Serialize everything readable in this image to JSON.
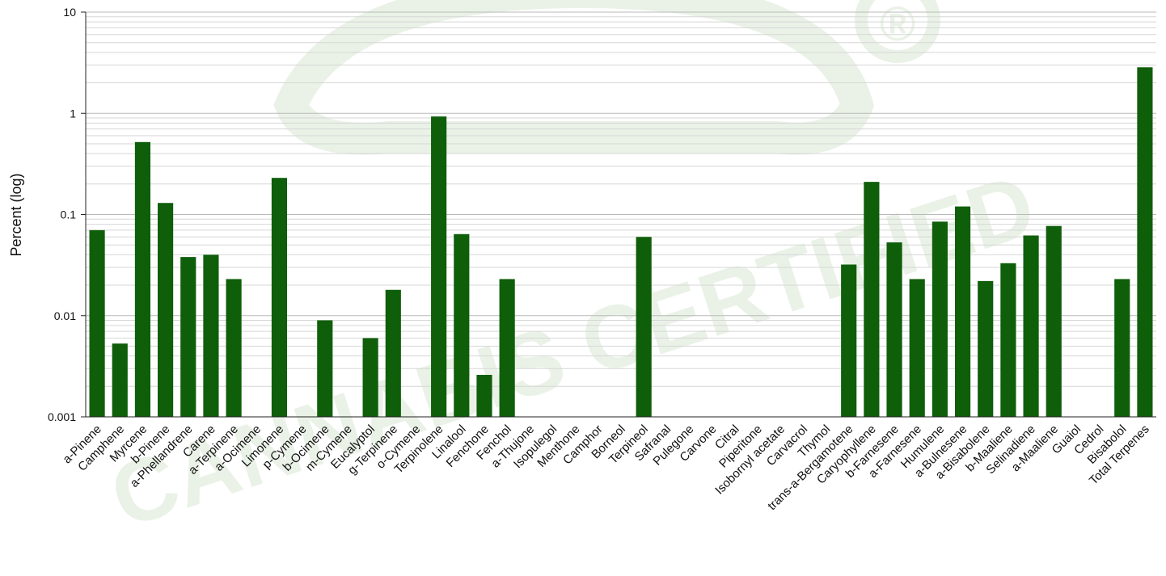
{
  "chart_data": {
    "type": "bar",
    "title": "",
    "xlabel": "",
    "ylabel": "Percent (log)",
    "yscale": "log",
    "ylim": [
      0.001,
      10
    ],
    "y_ticks": [
      "10",
      "1",
      "0.1",
      "0.01",
      "0.001"
    ],
    "grid": "horizontal minor and major",
    "legend": "none",
    "bar_color": "#0f5e0a",
    "categories": [
      "a-Pinene",
      "Camphene",
      "Myrcene",
      "b-Pinene",
      "a-Phellandrene",
      "Carene",
      "a-Terpinene",
      "a-Ocimene",
      "Limonene",
      "p-Cymene",
      "b-Ocimene",
      "m-Cymene",
      "Eucalyptol",
      "g-Terpinene",
      "o-Cymene",
      "Terpinolene",
      "Linalool",
      "Fenchone",
      "Fenchol",
      "a-Thujone",
      "Isopulegol",
      "Menthone",
      "Camphor",
      "Borneol",
      "Terpineol",
      "Safranal",
      "Pulegone",
      "Carvone",
      "Citral",
      "Piperitone",
      "Isobornyl acetate",
      "Carvacrol",
      "Thymol",
      "trans-a-Bergamotene",
      "Caryophyllene",
      "b-Farnesene",
      "a-Farnesene",
      "Humulene",
      "a-Bulnesene",
      "a-Bisabolene",
      "b-Maaliene",
      "Selinadiene",
      "a-Maaliene",
      "Guaiol",
      "Cedrol",
      "Bisabolol",
      "Total Terpenes"
    ],
    "values": [
      0.07,
      0.0053,
      0.52,
      0.13,
      0.038,
      0.04,
      0.023,
      null,
      0.23,
      null,
      0.009,
      null,
      0.006,
      0.018,
      null,
      0.93,
      0.064,
      0.0026,
      0.023,
      null,
      null,
      null,
      null,
      null,
      0.06,
      null,
      null,
      null,
      null,
      null,
      null,
      null,
      null,
      0.032,
      0.21,
      0.053,
      0.023,
      0.085,
      0.12,
      0.022,
      0.033,
      0.062,
      0.077,
      null,
      null,
      0.023,
      2.85
    ]
  },
  "watermark": {
    "text": "CANNABIS CERTIFIED",
    "mark": "®",
    "color": "#eaf2e7"
  }
}
